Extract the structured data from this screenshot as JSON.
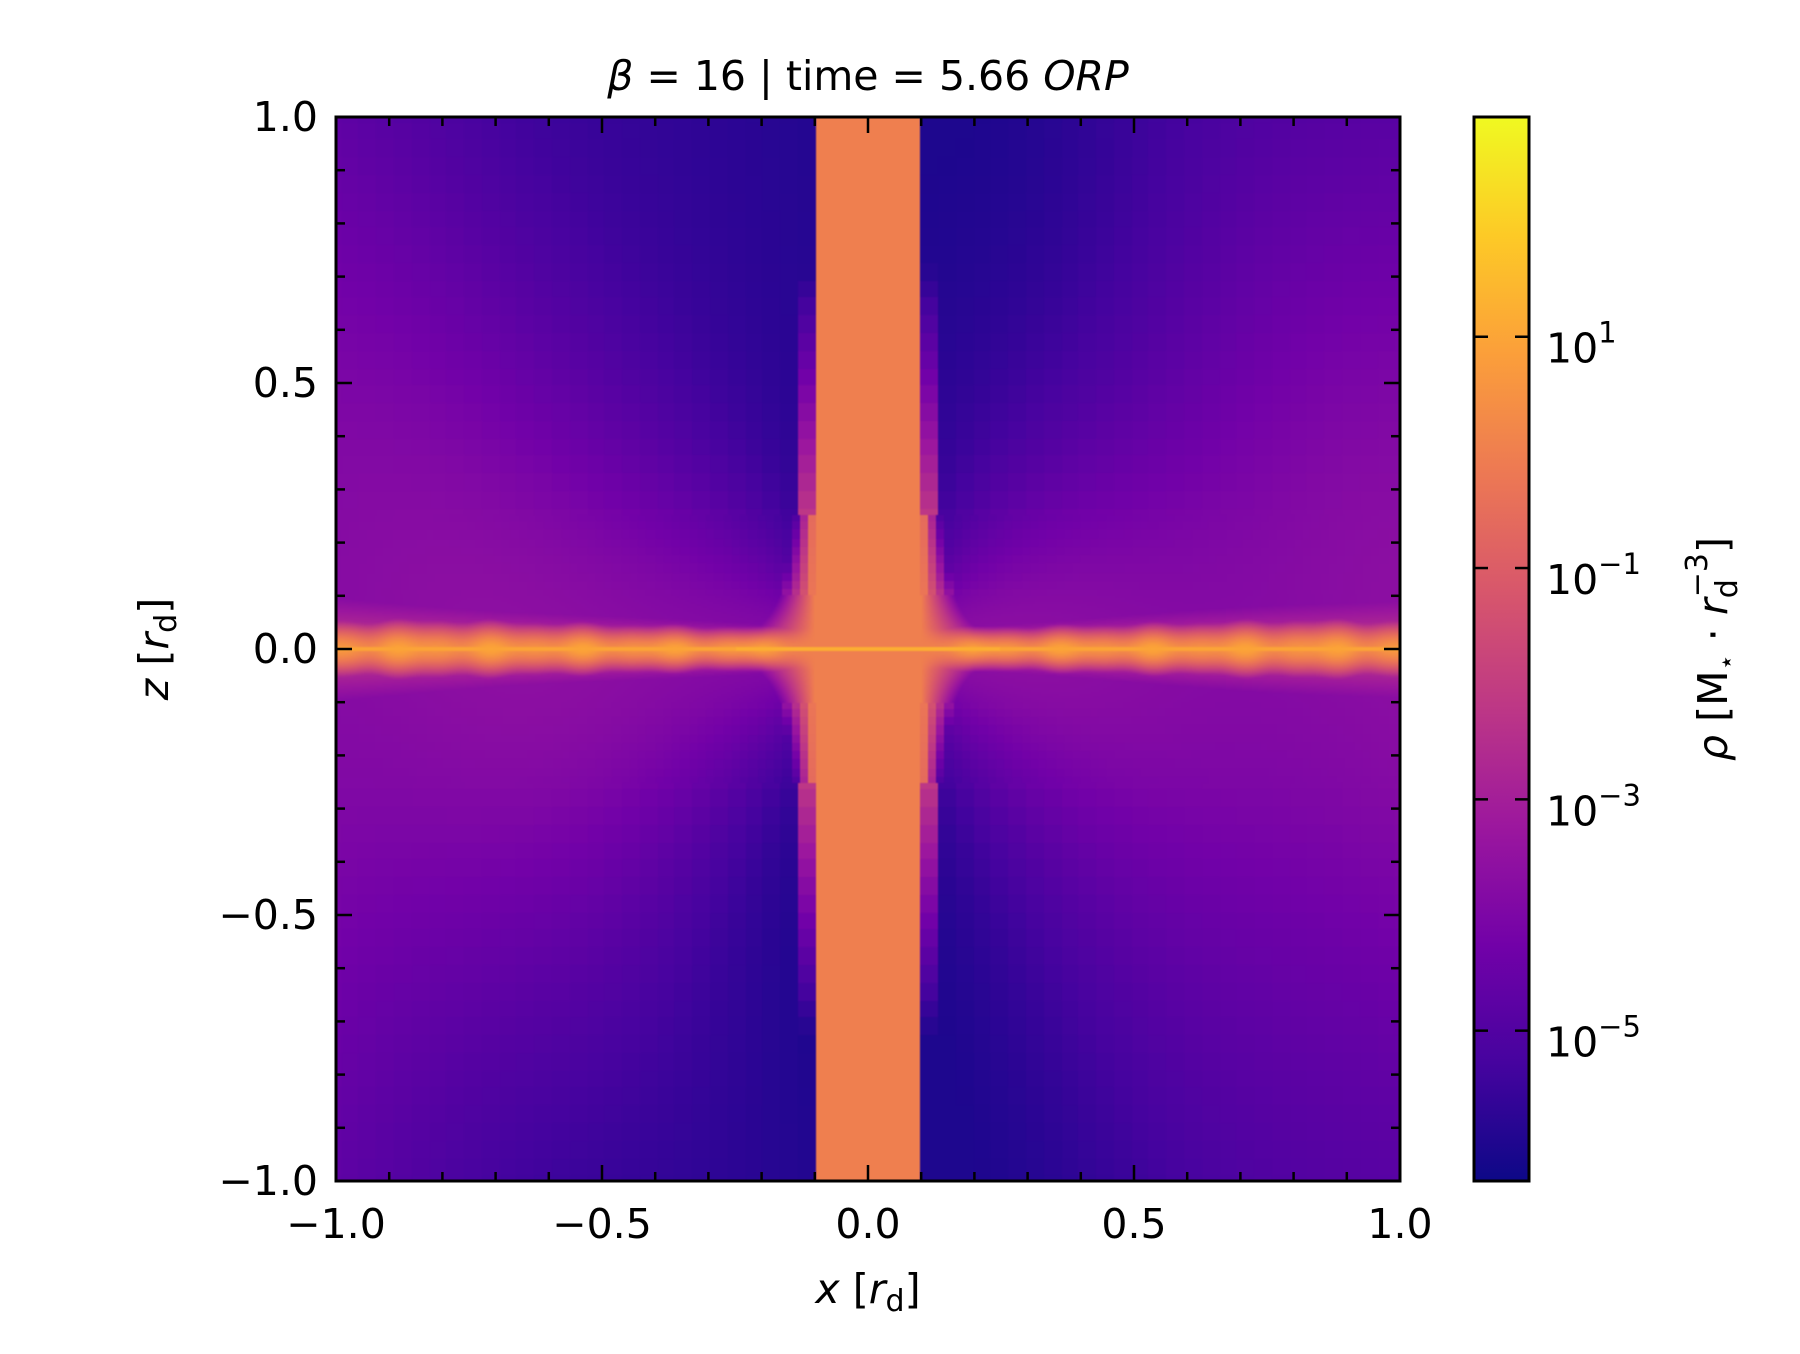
{
  "chart_data": {
    "type": "heatmap",
    "title": {
      "symbol": "β",
      "text": " = 16 | time = 5.66 ",
      "unit": "ORP"
    },
    "xlabel": {
      "var": "x",
      "open": " [",
      "sym": "r",
      "sub": "d",
      "close": "]"
    },
    "ylabel": {
      "var": "z",
      "open": " [",
      "sym": "r",
      "sub": "d",
      "close": "]"
    },
    "xlim": [
      -1.0,
      1.0
    ],
    "ylim": [
      -1.0,
      1.0
    ],
    "x_ticks": [
      -1.0,
      -0.5,
      0.0,
      0.5,
      1.0
    ],
    "y_ticks": [
      -1.0,
      -0.5,
      0.0,
      0.5,
      1.0
    ],
    "x_tick_labels": [
      "−1.0",
      "−0.5",
      "0.0",
      "0.5",
      "1.0"
    ],
    "y_tick_labels": [
      "−1.0",
      "−0.5",
      "0.0",
      "0.5",
      "1.0"
    ],
    "x_minor_step": 0.1,
    "y_minor_step": 0.1,
    "tick_direction": "in",
    "ticks_all_sides": true,
    "colormap": "plasma",
    "colorbar": {
      "scale": "log",
      "label": {
        "sym": "ρ",
        "open": " [M",
        "star": "⋆",
        "dot": " · ",
        "r": "r",
        "sub": "d",
        "sup": "−3",
        "close": "]"
      },
      "range_log10": [
        -6.3,
        2.9
      ],
      "ticks_log10": [
        1,
        -1,
        -3,
        -5
      ],
      "tick_labels": [
        {
          "base": "10",
          "exp": "1"
        },
        {
          "base": "10",
          "exp": "−1"
        },
        {
          "base": "10",
          "exp": "−3"
        },
        {
          "base": "10",
          "exp": "−5"
        }
      ],
      "colors": [
        "#0d0887",
        "#46039f",
        "#7201a8",
        "#9c179e",
        "#bd3786",
        "#d8576b",
        "#ed7953",
        "#fb9f3a",
        "#fdca26",
        "#f0f921"
      ]
    },
    "density_model": {
      "description": "log10 density in the x–z plane: thin dense midplane disk, low-density polar cones",
      "disk_peak_log10": 0.6,
      "midplane_line_log10": 1.2,
      "polar_min_log10": -6.0,
      "equatorial_background_log10": -3.7
    },
    "grid": false
  }
}
